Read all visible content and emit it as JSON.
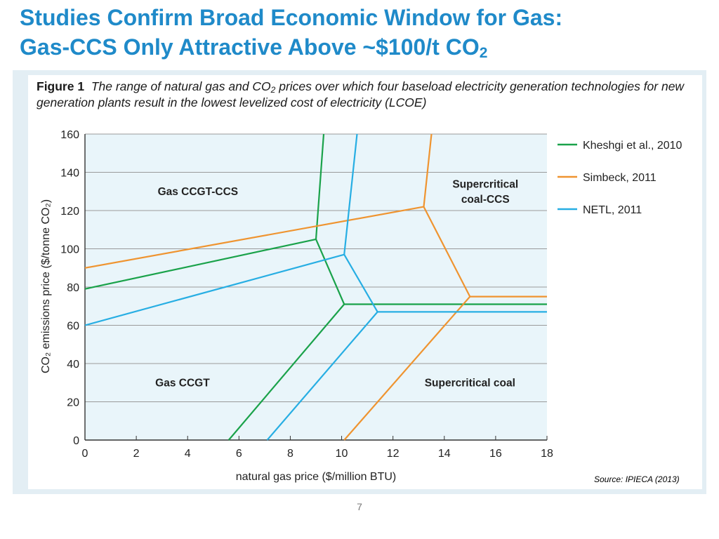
{
  "slide": {
    "title_line1": "Studies Confirm Broad Economic Window for Gas:",
    "title_line2": "Gas-CCS Only Attractive Above ~$100/t CO",
    "title_sub": "2",
    "source": "Source: IPIECA (2013)",
    "page_number": "7"
  },
  "figure": {
    "label": "Figure 1",
    "caption_part1": "The range of natural gas and CO",
    "caption_sub": "2",
    "caption_part2": " prices over which four baseload electricity generation technologies for new generation plants result in the lowest levelized cost of electricity (LCOE)"
  },
  "chart_data": {
    "type": "line",
    "xlabel": "natural gas price ($/million BTU)",
    "ylabel": "CO₂ emissions price ($/tonne CO₂)",
    "xlim": [
      0,
      18
    ],
    "ylim": [
      0,
      160
    ],
    "x_ticks": [
      0,
      2,
      4,
      6,
      8,
      10,
      12,
      14,
      16,
      18
    ],
    "y_ticks": [
      0,
      20,
      40,
      60,
      80,
      100,
      120,
      140,
      160
    ],
    "grid": "horizontal",
    "legend_position": "right",
    "background_color": "#e9f5fa",
    "series": [
      {
        "name": "Kheshgi et al., 2010",
        "color": "#1aa24a",
        "segments": [
          [
            [
              0,
              79
            ],
            [
              9.0,
              105
            ],
            [
              9.3,
              160
            ]
          ],
          [
            [
              9.0,
              105
            ],
            [
              10.1,
              71
            ],
            [
              18,
              71
            ]
          ],
          [
            [
              5.6,
              0
            ],
            [
              10.1,
              71
            ]
          ]
        ]
      },
      {
        "name": "Simbeck, 2011",
        "color": "#ef9430",
        "segments": [
          [
            [
              0,
              90
            ],
            [
              13.2,
              122
            ],
            [
              13.5,
              160
            ]
          ],
          [
            [
              13.2,
              122
            ],
            [
              15.0,
              75
            ],
            [
              18,
              75
            ]
          ],
          [
            [
              10.1,
              0
            ],
            [
              15.0,
              75
            ]
          ]
        ]
      },
      {
        "name": "NETL, 2011",
        "color": "#27aee3",
        "segments": [
          [
            [
              0,
              60
            ],
            [
              10.1,
              97
            ],
            [
              10.6,
              160
            ]
          ],
          [
            [
              10.1,
              97
            ],
            [
              11.4,
              67
            ],
            [
              18,
              67
            ]
          ],
          [
            [
              7.1,
              0
            ],
            [
              11.4,
              67
            ]
          ]
        ]
      }
    ],
    "region_labels": [
      {
        "text": "Gas CCGT-CCS",
        "x": 4.4,
        "y": 128
      },
      {
        "text": "Supercritical",
        "x": 15.6,
        "y": 132
      },
      {
        "text": "coal-CCS",
        "x": 15.6,
        "y": 124
      },
      {
        "text": "Gas CCGT",
        "x": 3.8,
        "y": 28
      },
      {
        "text": "Supercritical coal",
        "x": 15.0,
        "y": 28
      }
    ]
  }
}
